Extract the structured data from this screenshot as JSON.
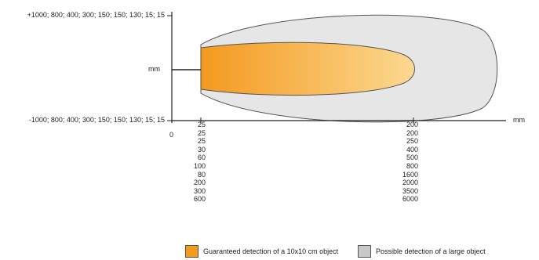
{
  "axis": {
    "top_label": "+1000; 800; 400; 300; 150; 150; 130; 15; 15",
    "mid_label": "mm",
    "bottom_label": "-1000; 800; 400; 300; 150; 150; 130; 15; 15",
    "x_unit": "mm",
    "zero": "0"
  },
  "near_values": [
    "25",
    "25",
    "25",
    "30",
    "60",
    "100",
    "80",
    "200",
    "300",
    "600"
  ],
  "far_values": [
    "200",
    "200",
    "250",
    "400",
    "500",
    "800",
    "1600",
    "2000",
    "3500",
    "6000"
  ],
  "legend": {
    "guaranteed": "Guaranteed detection of a 10x10 cm object",
    "possible": "Possible detection of a large object"
  },
  "colors": {
    "guaranteed_start": "#f39a1f",
    "guaranteed_end": "#fcd891",
    "possible": "#e6e6e6",
    "outline": "#555555"
  }
}
